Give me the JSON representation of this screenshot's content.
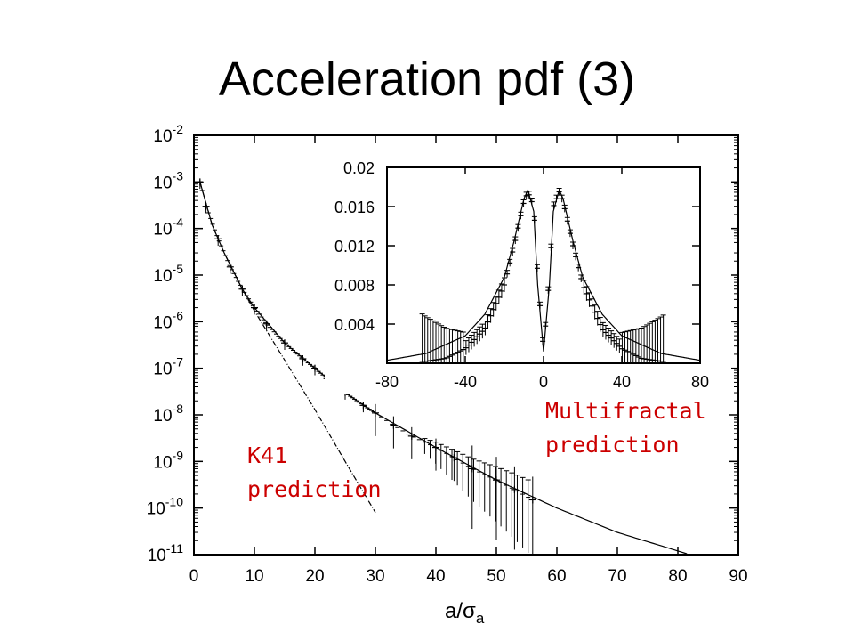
{
  "page": {
    "title": "Acceleration pdf (3)"
  },
  "chart_data": [
    {
      "type": "scatter",
      "title": "",
      "xlabel": "a/σ",
      "xlabel_subscript": "a",
      "ylabel": "",
      "xlim": [
        0,
        90
      ],
      "ylim": [
        1e-11,
        0.01
      ],
      "yscale": "log",
      "grid": false,
      "x_ticks": [
        0,
        10,
        20,
        30,
        40,
        50,
        60,
        70,
        80,
        90
      ],
      "y_ticks": [
        {
          "base": "10",
          "exp": "-2"
        },
        {
          "base": "10",
          "exp": "-3"
        },
        {
          "base": "10",
          "exp": "-4"
        },
        {
          "base": "10",
          "exp": "-5"
        },
        {
          "base": "10",
          "exp": "-6"
        },
        {
          "base": "10",
          "exp": "-7"
        },
        {
          "base": "10",
          "exp": "-8"
        },
        {
          "base": "10",
          "exp": "-9"
        },
        {
          "base": "10",
          "exp": "-10"
        },
        {
          "base": "10",
          "exp": "-11"
        }
      ],
      "series": [
        {
          "kind": "data-with-error-bars",
          "x": [
            1,
            2,
            4,
            6,
            8,
            10,
            12,
            15,
            18,
            20,
            22,
            25,
            28,
            30,
            33,
            36,
            40,
            43,
            46,
            50,
            53,
            56
          ],
          "y": [
            0.001,
            0.0003,
            6e-05,
            1.5e-05,
            5e-06,
            2e-06,
            9e-07,
            3.5e-07,
            1.6e-07,
            1e-07,
            6e-08,
            3e-08,
            1.6e-08,
            1.1e-08,
            6e-09,
            3.5e-09,
            2e-09,
            1.2e-09,
            7e-10,
            4e-10,
            2.5e-10,
            1.5e-10
          ]
        },
        {
          "kind": "multifractal-fit",
          "x": [
            1,
            3,
            5,
            8,
            10,
            15,
            20,
            25,
            30,
            40,
            50,
            60,
            70,
            80,
            83
          ],
          "y": [
            0.001,
            0.00012,
            3e-05,
            5e-06,
            2e-06,
            3.5e-07,
            1e-07,
            3e-08,
            1.1e-08,
            2e-09,
            4e-10,
            1e-10,
            3e-11,
            1.2e-11,
            9e-12
          ]
        },
        {
          "kind": "k41-fit",
          "x": [
            1,
            3,
            5,
            8,
            10,
            15,
            20,
            25,
            30
          ],
          "y": [
            0.001,
            0.00012,
            3e-05,
            5e-06,
            1.7e-06,
            1.5e-07,
            1.3e-08,
            1e-09,
            8e-11
          ]
        }
      ],
      "annotations": [
        {
          "id": "k41",
          "lines": [
            "K41",
            "prediction"
          ],
          "color": "#cc0000"
        },
        {
          "id": "multifractal",
          "lines": [
            "Multifractal",
            "prediction"
          ],
          "color": "#cc0000"
        }
      ]
    },
    {
      "type": "scatter",
      "title": "",
      "xlabel": "",
      "ylabel": "",
      "xlim": [
        -80,
        80
      ],
      "ylim": [
        0,
        0.02
      ],
      "yscale": "linear",
      "grid": false,
      "x_ticks": [
        "-80",
        "-40",
        "0",
        "40",
        "80"
      ],
      "y_ticks": [
        "0.02",
        "0.016",
        "0.012",
        "0.008",
        "0.004"
      ],
      "series": [
        {
          "kind": "data-with-error-bars",
          "x": [
            -60,
            -50,
            -40,
            -30,
            -20,
            -15,
            -10,
            -8,
            -5,
            -3,
            0,
            3,
            5,
            8,
            10,
            15,
            20,
            30,
            40,
            50,
            60
          ],
          "y": [
            0.0002,
            0.0005,
            0.0015,
            0.0035,
            0.008,
            0.012,
            0.0165,
            0.0175,
            0.016,
            0.009,
            0.0012,
            0.009,
            0.016,
            0.0175,
            0.0165,
            0.012,
            0.008,
            0.0035,
            0.0015,
            0.0005,
            0.0002
          ]
        },
        {
          "kind": "fit-curve",
          "x": [
            -80,
            -60,
            -40,
            -30,
            -20,
            -15,
            -10,
            -8,
            -5,
            -3,
            0,
            3,
            5,
            8,
            10,
            15,
            20,
            30,
            40,
            60,
            80
          ],
          "y": [
            0.0003,
            0.001,
            0.0028,
            0.005,
            0.0088,
            0.0125,
            0.0168,
            0.0177,
            0.0155,
            0.008,
            0.0012,
            0.008,
            0.0155,
            0.0177,
            0.0168,
            0.0125,
            0.0088,
            0.005,
            0.0028,
            0.001,
            0.0003
          ]
        }
      ],
      "placement": "top-right inset"
    }
  ]
}
